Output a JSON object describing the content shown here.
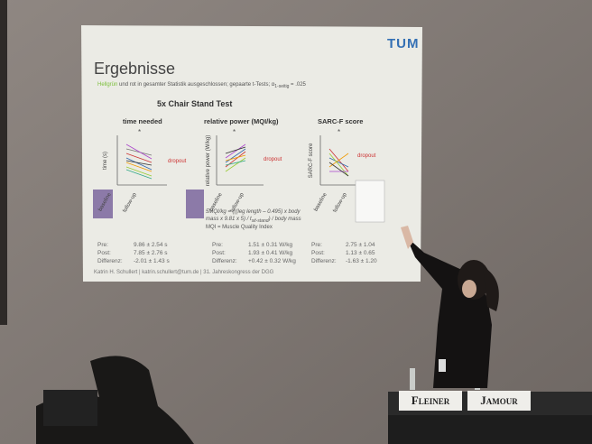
{
  "slide": {
    "logo": "TUM",
    "title": "Ergebnisse",
    "note_highlight": "Hellgrün",
    "note": " und rot in gesamter Statistik ausgeschlossen; gepaarte t-Tests; α",
    "note_sub": "1-seitig",
    "note_end": " = .025",
    "test_title": "5x Chair Stand Test",
    "panels": [
      {
        "title": "time needed",
        "y_label": "time (s)",
        "x_labels": [
          "baseline",
          "follow-up"
        ],
        "marker": "*",
        "tag": "dropout",
        "stats": [
          [
            "Pre:",
            "9.86 ± 2.54 s"
          ],
          [
            "Post:",
            "7.85 ± 2.76 s"
          ],
          [
            "Differenz:",
            "-2.01 ± 1.43 s"
          ]
        ]
      },
      {
        "title": "relative power (MQI/kg)",
        "y_label": "relative power (W/kg)",
        "x_labels": [
          "baseline",
          "follow-up"
        ],
        "marker": "*",
        "tag": "dropout",
        "stats": [
          [
            "Pre:",
            "1.51 ± 0.31 W/kg"
          ],
          [
            "Post:",
            "1.93 ± 0.41 W/kg"
          ],
          [
            "Differenz:",
            "+0.42 ± 0.32 W/kg"
          ]
        ]
      },
      {
        "title": "SARC-F score",
        "y_label": "SARC-F score",
        "x_labels": [
          "baseline",
          "follow-up"
        ],
        "marker": "*",
        "tag": "dropout",
        "stats": [
          [
            "Pre:",
            "2.75 ± 1.04"
          ],
          [
            "Post:",
            "1.13 ± 0.65"
          ],
          [
            "Differenz:",
            "-1.63 ± 1.20"
          ]
        ]
      }
    ],
    "formula": "5MQI/kg = (((leg length – 0.495) x body mass x 9.81 x 5) / t",
    "formula_sub": "sit-stand",
    "formula_end": ") / body mass",
    "mqi": "MQI = Muscle Quality Index",
    "footer": "Katrin H. Schullert | katrin.schullert@tum.de | 31. Jahreskongress der DGG"
  },
  "name_plates": [
    "Fleiner",
    "Jamour"
  ]
}
